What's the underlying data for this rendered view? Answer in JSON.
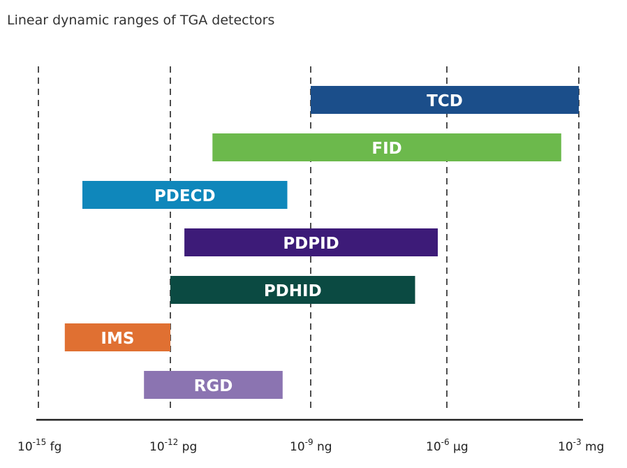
{
  "chart_data": {
    "type": "bar",
    "orientation": "horizontal-range",
    "title": "Linear dynamic ranges of TGA detectors",
    "xscale": "log10",
    "xlim": [
      -15,
      -3
    ],
    "grid": true,
    "ticks": [
      {
        "exp": "-15",
        "unit": "fg",
        "value": -15
      },
      {
        "exp": "-12",
        "unit": "pg",
        "value": -12
      },
      {
        "exp": "-9",
        "unit": "ng",
        "value": -9
      },
      {
        "exp": "-6",
        "unit": "µg",
        "value": -6
      },
      {
        "exp": "-3",
        "unit": "mg",
        "value": -3
      }
    ],
    "series": [
      {
        "name": "TCD",
        "start": -9,
        "end": -3,
        "color": "#1b4e8a"
      },
      {
        "name": "FID",
        "start": -11.1,
        "end": -3.4,
        "color": "#6cb94c"
      },
      {
        "name": "PDECD",
        "start": -14,
        "end": -9.5,
        "color": "#0f87bb"
      },
      {
        "name": "PDPID",
        "start": -11.7,
        "end": -6.2,
        "color": "#3d1b78"
      },
      {
        "name": "PDHID",
        "start": -12,
        "end": -6.7,
        "color": "#0b4a42"
      },
      {
        "name": "IMS",
        "start": -14.4,
        "end": -12,
        "color": "#e07032"
      },
      {
        "name": "RGD",
        "start": -12.6,
        "end": -9.6,
        "color": "#8b74b1"
      }
    ]
  }
}
